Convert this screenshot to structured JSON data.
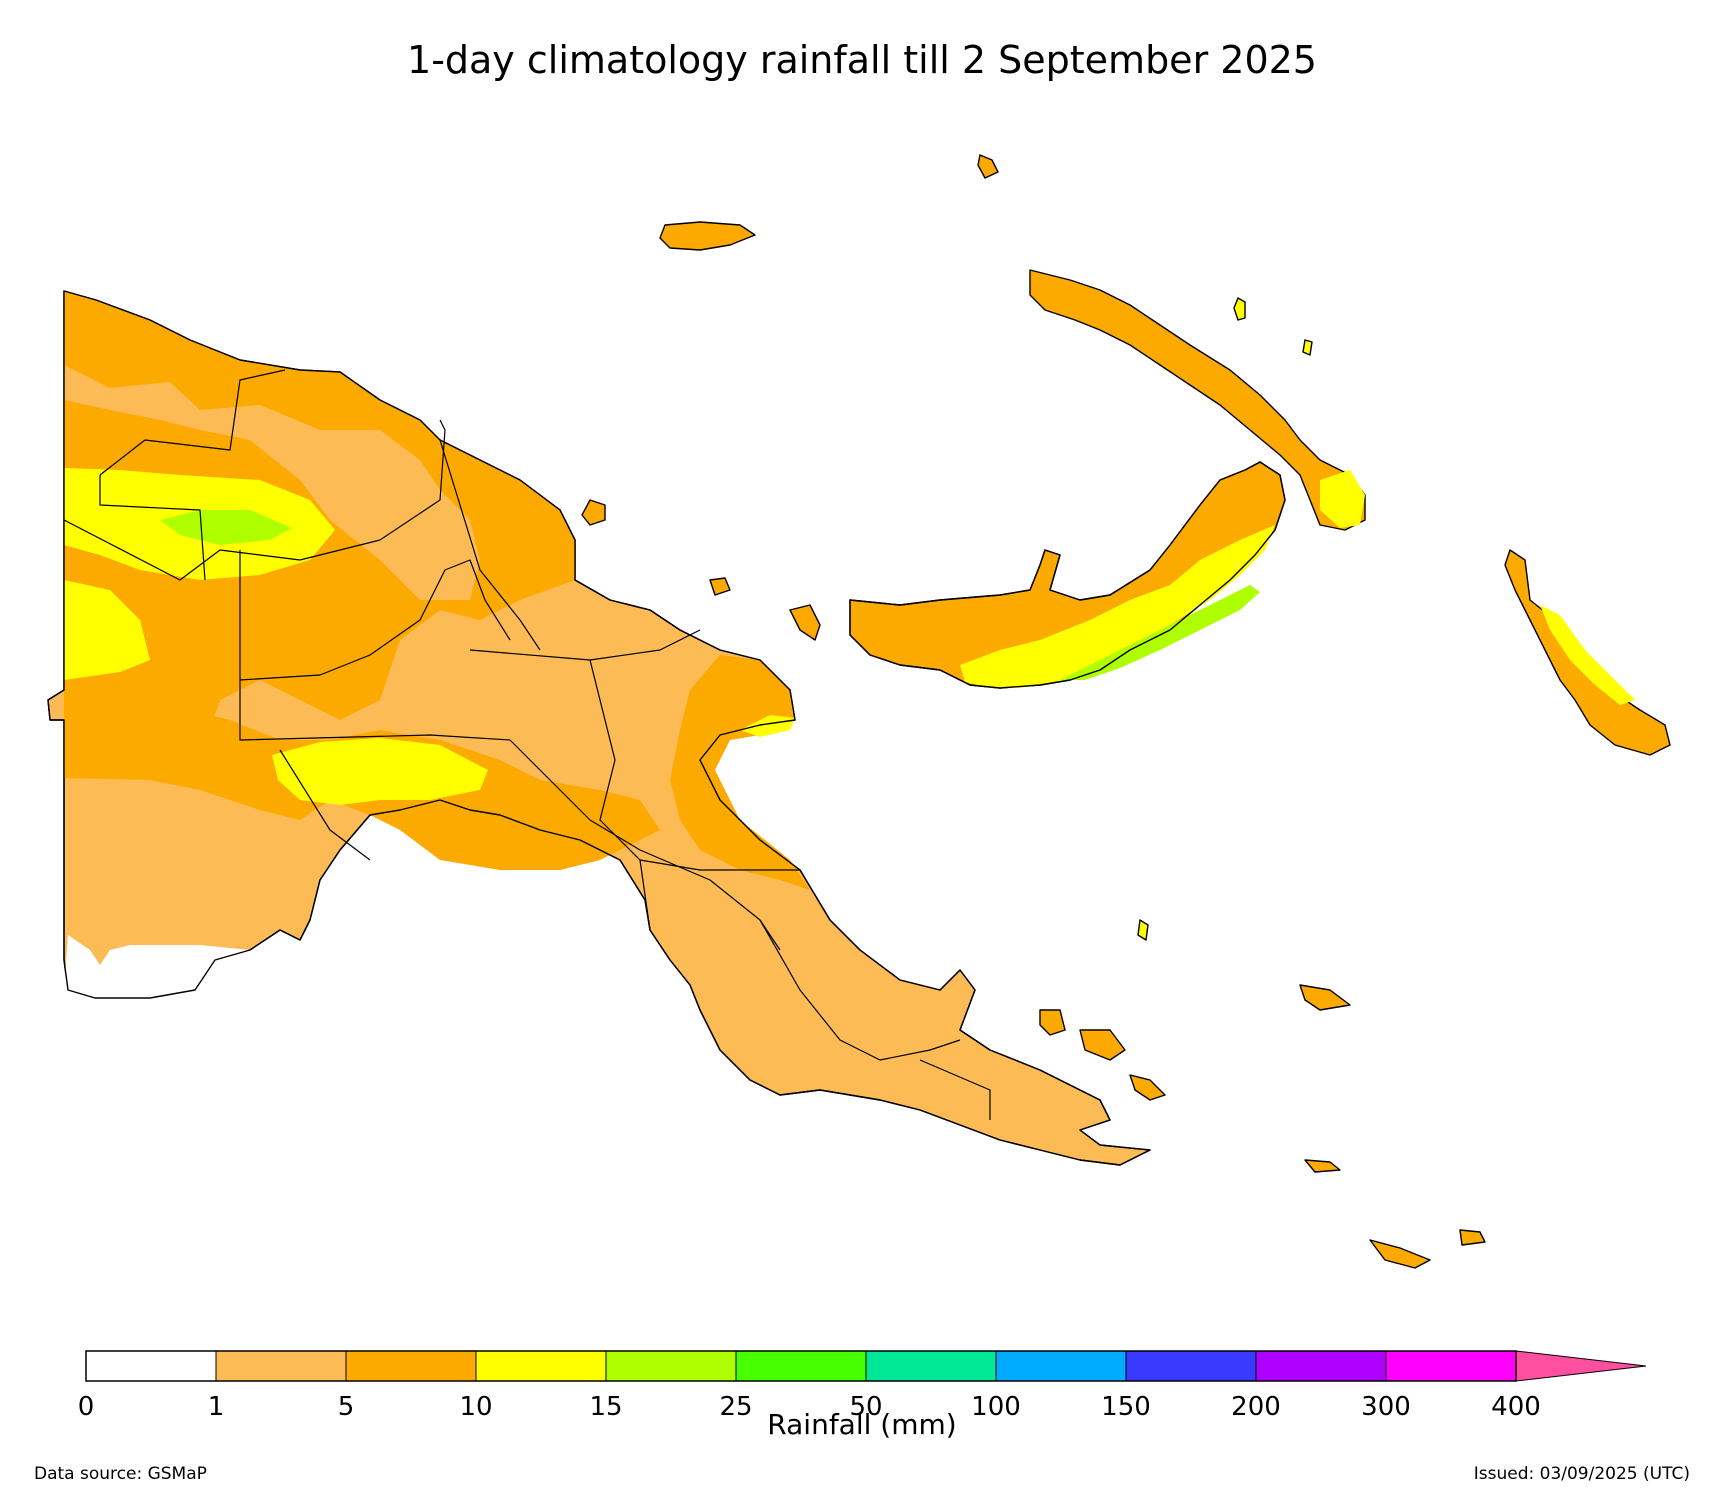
{
  "title": "1-day climatology rainfall till 2 September 2025",
  "colorbar": {
    "label": "Rainfall (mm)",
    "ticks": [
      "0",
      "1",
      "5",
      "10",
      "15",
      "25",
      "50",
      "100",
      "150",
      "200",
      "300",
      "400"
    ],
    "colors": [
      "#ffffff",
      "#fdbb55",
      "#fcaa00",
      "#ffff00",
      "#b0ff00",
      "#48ff00",
      "#00e896",
      "#00aaff",
      "#3a3aff",
      "#ae00ff",
      "#ff00ff",
      "#ff4fa0"
    ],
    "extend": "max"
  },
  "footer": {
    "source": "Data source: GSMaP",
    "issued": "Issued: 03/09/2025 (UTC)"
  }
}
